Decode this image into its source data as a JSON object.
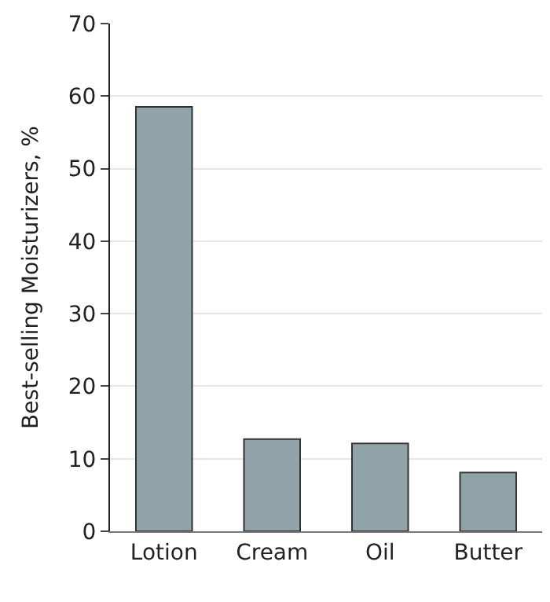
{
  "chart_data": {
    "type": "bar",
    "ylabel": "Best-selling Moisturizers, %",
    "categories": [
      "Lotion",
      "Cream",
      "Oil",
      "Butter"
    ],
    "values": [
      58.5,
      12.7,
      12.1,
      8.1
    ],
    "color": "#8fa3a8",
    "ylim": [
      0,
      70
    ],
    "yticks": [
      0,
      10,
      20,
      30,
      40,
      50,
      60,
      70
    ],
    "grid": "y",
    "legend": false
  }
}
